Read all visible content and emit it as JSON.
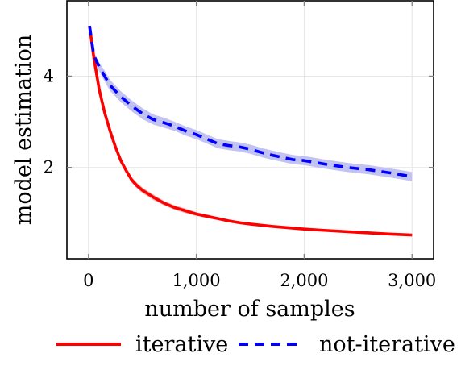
{
  "chart_data": {
    "type": "line",
    "title": "",
    "xlabel": "number of samples",
    "ylabel": "model estimation",
    "xlim": [
      -200,
      3200
    ],
    "ylim": [
      0,
      5.65
    ],
    "xticks": [
      {
        "value": 0,
        "label": "0"
      },
      {
        "value": 1000,
        "label": "1,000"
      },
      {
        "value": 2000,
        "label": "2,000"
      },
      {
        "value": 3000,
        "label": "3,000"
      }
    ],
    "yticks": [
      {
        "value": 2,
        "label": "2"
      },
      {
        "value": 4,
        "label": "4"
      }
    ],
    "grid": true,
    "legend": "bottom",
    "series": [
      {
        "name": "iterative",
        "color": "#ff0000",
        "band_color": "#f4b4b4",
        "dash": "solid",
        "x": [
          10,
          50,
          100,
          150,
          200,
          250,
          300,
          350,
          400,
          450,
          500,
          600,
          700,
          800,
          900,
          1000,
          1100,
          1200,
          1300,
          1400,
          1500,
          1700,
          2000,
          2200,
          2500,
          2800,
          3000
        ],
        "y": [
          5.1,
          4.4,
          3.7,
          3.2,
          2.8,
          2.45,
          2.15,
          1.93,
          1.73,
          1.6,
          1.5,
          1.35,
          1.22,
          1.12,
          1.05,
          0.98,
          0.93,
          0.88,
          0.83,
          0.79,
          0.76,
          0.71,
          0.65,
          0.62,
          0.58,
          0.54,
          0.52
        ],
        "band": [
          0.01,
          0.03,
          0.05,
          0.06,
          0.06,
          0.06,
          0.06,
          0.06,
          0.06,
          0.06,
          0.06,
          0.06,
          0.05,
          0.05,
          0.05,
          0.04,
          0.04,
          0.03,
          0.03,
          0.03,
          0.03,
          0.02,
          0.02,
          0.02,
          0.02,
          0.02,
          0.02
        ]
      },
      {
        "name": "not-iterative",
        "color": "#0000ff",
        "band_color": "#c3c3f3",
        "dash": "dashed",
        "x": [
          10,
          50,
          100,
          150,
          200,
          300,
          400,
          500,
          600,
          700,
          800,
          900,
          1000,
          1100,
          1200,
          1300,
          1400,
          1500,
          1600,
          1700,
          1800,
          1900,
          2000,
          2200,
          2400,
          2600,
          2800,
          3000
        ],
        "y": [
          5.1,
          4.45,
          4.2,
          4.0,
          3.8,
          3.55,
          3.35,
          3.18,
          3.05,
          2.98,
          2.9,
          2.8,
          2.72,
          2.62,
          2.52,
          2.48,
          2.45,
          2.4,
          2.33,
          2.27,
          2.22,
          2.17,
          2.15,
          2.07,
          2.0,
          1.95,
          1.88,
          1.8
        ],
        "band": [
          0.02,
          0.08,
          0.1,
          0.12,
          0.12,
          0.12,
          0.12,
          0.12,
          0.11,
          0.11,
          0.1,
          0.1,
          0.1,
          0.1,
          0.1,
          0.1,
          0.1,
          0.1,
          0.1,
          0.1,
          0.1,
          0.1,
          0.1,
          0.1,
          0.1,
          0.1,
          0.1,
          0.1
        ]
      }
    ]
  }
}
